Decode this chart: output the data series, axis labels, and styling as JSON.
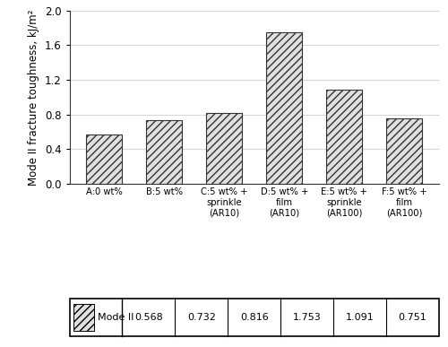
{
  "categories": [
    "A:0 wt%",
    "B:5 wt%",
    "C:5 wt% +\nsprinkle\n(AR10)",
    "D:5 wt% +\nfilm\n(AR10)",
    "E:5 wt% +\nsprinkle\n(AR100)",
    "F:5 wt% +\nfilm\n(AR100)"
  ],
  "values": [
    0.568,
    0.732,
    0.816,
    1.753,
    1.091,
    0.751
  ],
  "table_values": [
    "0.568",
    "0.732",
    "0.816",
    "1.753",
    "1.091",
    "0.751"
  ],
  "ylabel": "Mode II fracture toughness, kJ/m²",
  "ylim": [
    0,
    2.0
  ],
  "yticks": [
    0,
    0.4,
    0.8,
    1.2,
    1.6,
    2.0
  ],
  "bar_color": "#e0e0e0",
  "bar_edgecolor": "#333333",
  "hatch": "////",
  "table_row_label": "Mode II",
  "bar_width": 0.6,
  "grid_color": "#cccccc",
  "spine_color": "#333333"
}
